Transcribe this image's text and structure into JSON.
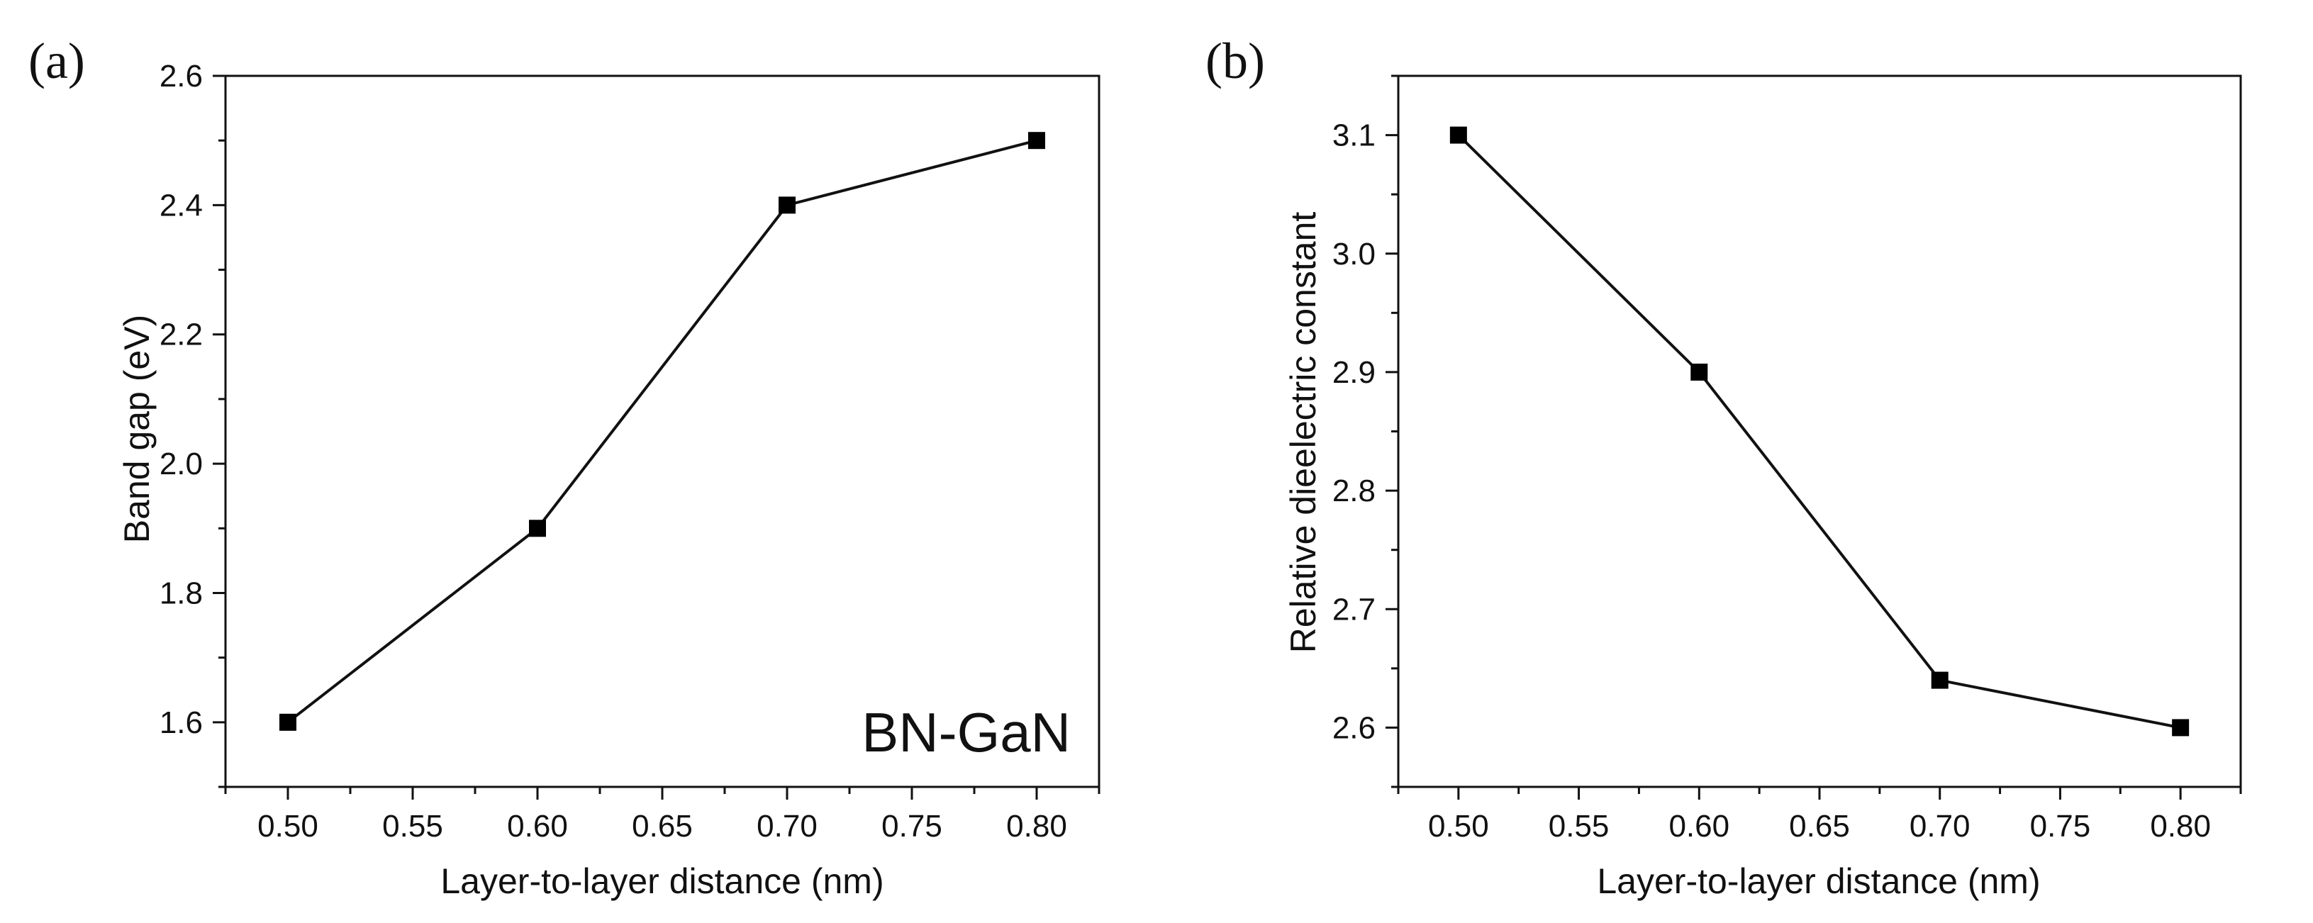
{
  "chart_data": [
    {
      "type": "line",
      "panel_label": "(a)",
      "title": "",
      "xlabel": "Layer-to-layer distance (nm)",
      "ylabel": "Band gap (eV)",
      "annotation": "BN-GaN",
      "xlim": [
        0.475,
        0.825
      ],
      "ylim": [
        1.5,
        2.6
      ],
      "x_ticks": [
        0.5,
        0.55,
        0.6,
        0.65,
        0.7,
        0.75,
        0.8
      ],
      "x_tick_labels": [
        "0.50",
        "0.55",
        "0.60",
        "0.65",
        "0.70",
        "0.75",
        "0.80"
      ],
      "y_ticks": [
        1.6,
        1.8,
        2.0,
        2.2,
        2.4,
        2.6
      ],
      "y_tick_labels": [
        "1.6",
        "1.8",
        "2.0",
        "2.2",
        "2.4",
        "2.6"
      ],
      "grid": false,
      "series": [
        {
          "name": "BN-GaN",
          "x": [
            0.5,
            0.6,
            0.7,
            0.8
          ],
          "y": [
            1.6,
            1.9,
            2.4,
            2.5
          ]
        }
      ]
    },
    {
      "type": "line",
      "panel_label": "(b)",
      "title": "",
      "xlabel": "Layer-to-layer distance (nm)",
      "ylabel": "Relative dieelectric constant",
      "annotation": "",
      "xlim": [
        0.475,
        0.825
      ],
      "ylim": [
        2.55,
        3.15
      ],
      "x_ticks": [
        0.5,
        0.55,
        0.6,
        0.65,
        0.7,
        0.75,
        0.8
      ],
      "x_tick_labels": [
        "0.50",
        "0.55",
        "0.60",
        "0.65",
        "0.70",
        "0.75",
        "0.80"
      ],
      "y_ticks": [
        2.6,
        2.7,
        2.8,
        2.9,
        3.0,
        3.1
      ],
      "y_tick_labels": [
        "2.6",
        "2.7",
        "2.8",
        "2.9",
        "3.0",
        "3.1"
      ],
      "grid": false,
      "series": [
        {
          "name": "dielectric",
          "x": [
            0.5,
            0.6,
            0.7,
            0.8
          ],
          "y": [
            3.1,
            2.9,
            2.64,
            2.6
          ]
        }
      ]
    }
  ]
}
